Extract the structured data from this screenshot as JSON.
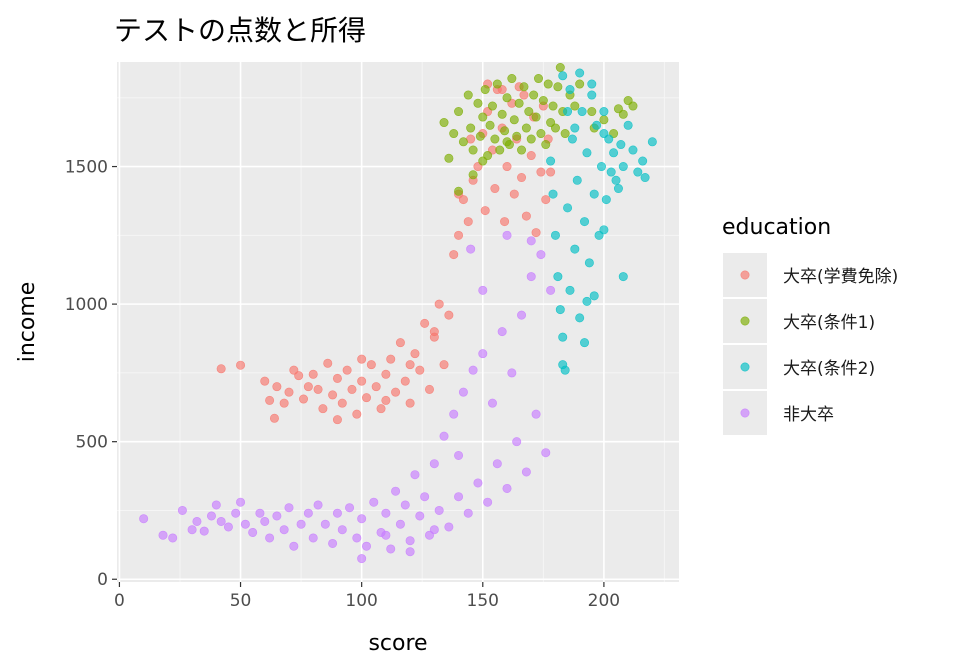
{
  "chart_data": {
    "type": "scatter",
    "title": "テストの点数と所得",
    "xlabel": "score",
    "ylabel": "income",
    "xlim": [
      -1,
      231
    ],
    "ylim": [
      -10,
      1880
    ],
    "x_ticks": [
      0,
      50,
      100,
      150,
      200
    ],
    "y_ticks": [
      0,
      500,
      1000,
      1500
    ],
    "grid": true,
    "legend_title": "education",
    "legend_position": "right",
    "series": [
      {
        "name": "大卒(学費免除)",
        "color": "#F8766D",
        "points": [
          [
            42,
            765
          ],
          [
            50,
            778
          ],
          [
            60,
            720
          ],
          [
            62,
            650
          ],
          [
            64,
            585
          ],
          [
            65,
            700
          ],
          [
            68,
            640
          ],
          [
            70,
            680
          ],
          [
            72,
            760
          ],
          [
            74,
            740
          ],
          [
            76,
            655
          ],
          [
            78,
            700
          ],
          [
            80,
            745
          ],
          [
            82,
            690
          ],
          [
            84,
            620
          ],
          [
            86,
            785
          ],
          [
            88,
            670
          ],
          [
            90,
            730
          ],
          [
            92,
            640
          ],
          [
            94,
            760
          ],
          [
            96,
            690
          ],
          [
            98,
            600
          ],
          [
            100,
            720
          ],
          [
            102,
            660
          ],
          [
            104,
            780
          ],
          [
            106,
            700
          ],
          [
            108,
            620
          ],
          [
            110,
            745
          ],
          [
            112,
            800
          ],
          [
            114,
            680
          ],
          [
            116,
            860
          ],
          [
            118,
            720
          ],
          [
            120,
            640
          ],
          [
            122,
            820
          ],
          [
            124,
            760
          ],
          [
            126,
            930
          ],
          [
            128,
            690
          ],
          [
            130,
            880
          ],
          [
            132,
            1000
          ],
          [
            134,
            780
          ],
          [
            136,
            960
          ],
          [
            138,
            1180
          ],
          [
            140,
            1250
          ],
          [
            142,
            1380
          ],
          [
            144,
            1300
          ],
          [
            146,
            1450
          ],
          [
            148,
            1500
          ],
          [
            150,
            1620
          ],
          [
            151,
            1340
          ],
          [
            152,
            1700
          ],
          [
            154,
            1560
          ],
          [
            155,
            1420
          ],
          [
            156,
            1780
          ],
          [
            158,
            1640
          ],
          [
            159,
            1300
          ],
          [
            160,
            1500
          ],
          [
            162,
            1730
          ],
          [
            163,
            1400
          ],
          [
            164,
            1600
          ],
          [
            166,
            1460
          ],
          [
            167,
            1760
          ],
          [
            168,
            1320
          ],
          [
            170,
            1540
          ],
          [
            171,
            1680
          ],
          [
            172,
            1260
          ],
          [
            174,
            1480
          ],
          [
            175,
            1720
          ],
          [
            176,
            1380
          ],
          [
            177,
            1600
          ],
          [
            178,
            1480
          ],
          [
            152,
            1800
          ],
          [
            158,
            1780
          ],
          [
            165,
            1790
          ],
          [
            145,
            1600
          ],
          [
            140,
            1400
          ],
          [
            130,
            900
          ],
          [
            120,
            780
          ],
          [
            110,
            650
          ],
          [
            100,
            800
          ],
          [
            90,
            580
          ]
        ]
      },
      {
        "name": "大卒(条件1)",
        "color": "#7CAE00",
        "points": [
          [
            134,
            1660
          ],
          [
            136,
            1530
          ],
          [
            138,
            1620
          ],
          [
            140,
            1700
          ],
          [
            142,
            1590
          ],
          [
            144,
            1760
          ],
          [
            145,
            1640
          ],
          [
            146,
            1560
          ],
          [
            148,
            1730
          ],
          [
            149,
            1610
          ],
          [
            150,
            1680
          ],
          [
            151,
            1780
          ],
          [
            152,
            1540
          ],
          [
            153,
            1650
          ],
          [
            154,
            1720
          ],
          [
            155,
            1600
          ],
          [
            156,
            1800
          ],
          [
            157,
            1560
          ],
          [
            158,
            1690
          ],
          [
            159,
            1630
          ],
          [
            160,
            1750
          ],
          [
            161,
            1580
          ],
          [
            162,
            1820
          ],
          [
            163,
            1670
          ],
          [
            164,
            1610
          ],
          [
            165,
            1730
          ],
          [
            166,
            1560
          ],
          [
            167,
            1790
          ],
          [
            168,
            1640
          ],
          [
            169,
            1700
          ],
          [
            170,
            1600
          ],
          [
            171,
            1760
          ],
          [
            172,
            1680
          ],
          [
            173,
            1820
          ],
          [
            174,
            1620
          ],
          [
            175,
            1740
          ],
          [
            176,
            1580
          ],
          [
            177,
            1800
          ],
          [
            178,
            1660
          ],
          [
            179,
            1720
          ],
          [
            180,
            1640
          ],
          [
            181,
            1790
          ],
          [
            182,
            1860
          ],
          [
            183,
            1700
          ],
          [
            184,
            1620
          ],
          [
            186,
            1760
          ],
          [
            190,
            1800
          ],
          [
            195,
            1700
          ],
          [
            200,
            1670
          ],
          [
            204,
            1620
          ],
          [
            206,
            1710
          ],
          [
            208,
            1690
          ],
          [
            210,
            1740
          ],
          [
            212,
            1720
          ],
          [
            196,
            1640
          ],
          [
            188,
            1720
          ],
          [
            146,
            1470
          ],
          [
            140,
            1410
          ],
          [
            150,
            1520
          ],
          [
            160,
            1590
          ]
        ]
      },
      {
        "name": "大卒(条件2)",
        "color": "#00BFC4",
        "points": [
          [
            178,
            1520
          ],
          [
            179,
            1400
          ],
          [
            180,
            1250
          ],
          [
            181,
            1100
          ],
          [
            182,
            980
          ],
          [
            183,
            880
          ],
          [
            183,
            780
          ],
          [
            184,
            760
          ],
          [
            185,
            1350
          ],
          [
            186,
            1050
          ],
          [
            187,
            1600
          ],
          [
            188,
            1200
          ],
          [
            189,
            1450
          ],
          [
            190,
            950
          ],
          [
            191,
            1700
          ],
          [
            192,
            1300
          ],
          [
            193,
            1550
          ],
          [
            194,
            1150
          ],
          [
            195,
            1800
          ],
          [
            196,
            1400
          ],
          [
            197,
            1650
          ],
          [
            198,
            1250
          ],
          [
            199,
            1500
          ],
          [
            200,
            1700
          ],
          [
            201,
            1380
          ],
          [
            202,
            1600
          ],
          [
            203,
            1480
          ],
          [
            204,
            1550
          ],
          [
            205,
            1450
          ],
          [
            206,
            1420
          ],
          [
            207,
            1580
          ],
          [
            208,
            1500
          ],
          [
            210,
            1650
          ],
          [
            212,
            1560
          ],
          [
            214,
            1480
          ],
          [
            216,
            1520
          ],
          [
            217,
            1460
          ],
          [
            220,
            1590
          ],
          [
            208,
            1100
          ],
          [
            196,
            1030
          ],
          [
            192,
            860
          ],
          [
            188,
            1640
          ],
          [
            186,
            1780
          ],
          [
            190,
            1840
          ],
          [
            183,
            1830
          ],
          [
            185,
            1700
          ],
          [
            195,
            1760
          ],
          [
            200,
            1620
          ],
          [
            193,
            1010
          ],
          [
            200,
            1270
          ]
        ]
      },
      {
        "name": "非大卒",
        "color": "#C77CFF",
        "points": [
          [
            10,
            220
          ],
          [
            18,
            160
          ],
          [
            22,
            150
          ],
          [
            26,
            250
          ],
          [
            30,
            180
          ],
          [
            32,
            210
          ],
          [
            35,
            175
          ],
          [
            38,
            230
          ],
          [
            40,
            270
          ],
          [
            42,
            210
          ],
          [
            45,
            190
          ],
          [
            48,
            240
          ],
          [
            50,
            280
          ],
          [
            52,
            200
          ],
          [
            55,
            170
          ],
          [
            58,
            240
          ],
          [
            60,
            210
          ],
          [
            62,
            150
          ],
          [
            65,
            230
          ],
          [
            68,
            180
          ],
          [
            70,
            260
          ],
          [
            72,
            120
          ],
          [
            75,
            200
          ],
          [
            78,
            240
          ],
          [
            80,
            150
          ],
          [
            82,
            270
          ],
          [
            85,
            200
          ],
          [
            88,
            130
          ],
          [
            90,
            240
          ],
          [
            92,
            180
          ],
          [
            95,
            260
          ],
          [
            98,
            150
          ],
          [
            100,
            220
          ],
          [
            102,
            120
          ],
          [
            105,
            280
          ],
          [
            108,
            170
          ],
          [
            110,
            240
          ],
          [
            112,
            110
          ],
          [
            114,
            320
          ],
          [
            116,
            200
          ],
          [
            118,
            270
          ],
          [
            120,
            140
          ],
          [
            122,
            380
          ],
          [
            124,
            230
          ],
          [
            126,
            300
          ],
          [
            128,
            160
          ],
          [
            130,
            420
          ],
          [
            132,
            250
          ],
          [
            134,
            520
          ],
          [
            136,
            190
          ],
          [
            138,
            600
          ],
          [
            140,
            300
          ],
          [
            142,
            680
          ],
          [
            144,
            240
          ],
          [
            146,
            760
          ],
          [
            148,
            350
          ],
          [
            150,
            820
          ],
          [
            152,
            280
          ],
          [
            154,
            640
          ],
          [
            156,
            420
          ],
          [
            158,
            900
          ],
          [
            160,
            330
          ],
          [
            162,
            750
          ],
          [
            164,
            500
          ],
          [
            166,
            960
          ],
          [
            168,
            390
          ],
          [
            170,
            1100
          ],
          [
            172,
            600
          ],
          [
            174,
            1180
          ],
          [
            176,
            460
          ],
          [
            178,
            1050
          ],
          [
            145,
            1200
          ],
          [
            150,
            1050
          ],
          [
            160,
            1250
          ],
          [
            170,
            1230
          ],
          [
            140,
            450
          ],
          [
            130,
            180
          ],
          [
            120,
            100
          ],
          [
            110,
            160
          ],
          [
            100,
            75
          ]
        ]
      }
    ]
  }
}
